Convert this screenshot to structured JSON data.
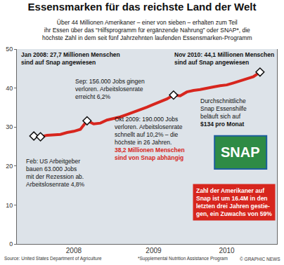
{
  "chart_data": {
    "type": "line",
    "title": "Essensmarken für das reichste Land der Welt",
    "subtitle": [
      "Über 44 Millionen Amerikaner – einer von sieben – erhalten zum Teil",
      "ihr Essen über das “Hilfsprogramm für ergänzende Nahrung” oder SNAP*, die",
      "höchste Zahl in dem seit fünf Jahrzehnten laufenden Essensmarken-Programm"
    ],
    "categories": [
      null,
      null,
      null,
      null,
      null,
      null,
      "2008",
      null,
      null,
      null,
      null,
      null,
      null,
      null,
      null,
      null,
      null,
      null,
      "2009",
      null,
      null,
      null,
      null,
      null,
      null,
      null,
      null,
      null,
      null,
      "2010",
      null,
      null,
      null,
      null,
      null
    ],
    "values": [
      27.7,
      27.5,
      27.9,
      28.0,
      28.1,
      28.6,
      28.9,
      29.4,
      31.6,
      30.8,
      31.0,
      31.8,
      32.2,
      32.6,
      33.2,
      33.8,
      34.4,
      35.1,
      35.8,
      36.5,
      37.2,
      38.2,
      38.0,
      39.0,
      39.4,
      39.6,
      40.0,
      40.3,
      40.6,
      40.8,
      41.3,
      41.8,
      42.4,
      42.9,
      44.1
    ],
    "color": "#d7261e",
    "ylim": [
      0,
      50
    ],
    "yticks": [
      0,
      10,
      20,
      30,
      40,
      50
    ],
    "grid": false,
    "marker": "diamond",
    "annotations": [
      {
        "x": 0,
        "lines": [
          "Jan 2008: 27,7 Millionen Menschen",
          "sind auf Snap angewiesen"
        ]
      },
      {
        "x": 1,
        "lines": [
          "Feb: US Arbeitgeber",
          "bauen 63.000 Jobs",
          "mit der Rezession ab.",
          "Arbeitslosenrate 4,8%"
        ]
      },
      {
        "x": 8,
        "lines": [
          "Sep: 156.000 Jobs gingen",
          "verloren. Arbeitslosenrate",
          "erreicht 6,2%"
        ]
      },
      {
        "x": 21,
        "lines": [
          "Okt 2009: 190.000 Jobs",
          "verloren. Arbeitslosenrate",
          "schnellt auf 10,2% – die",
          "höchste in 26 Jahren."
        ],
        "highlight_lines": [
          "38,2 Millionen Menschen",
          "sind von Snap abhängig"
        ]
      },
      {
        "x": 34,
        "lines": [
          "Nov 2010: 44,1 Millionen Menschen",
          "sind auf Snap angewiesen"
        ]
      }
    ],
    "notes": [
      {
        "lines": [
          "Durchschnittliche",
          "Snap Essenshilfe",
          "beläuft sich auf"
        ],
        "highlight_lines": [
          "$134 pro Monat"
        ]
      },
      {
        "lines": [
          "Zahl der Amerikaner auf",
          "Snap ist um 16.4M in den",
          "letzten drei Jahren gestie-",
          "gen, ein Zuwachs von 59%"
        ]
      }
    ],
    "logo": "SNAP",
    "source": "Source: United States Department of Agriculture",
    "footnote": "*Supplemental Nutrition Assistance Program",
    "credit": "© GRAPHIC NEWS"
  }
}
